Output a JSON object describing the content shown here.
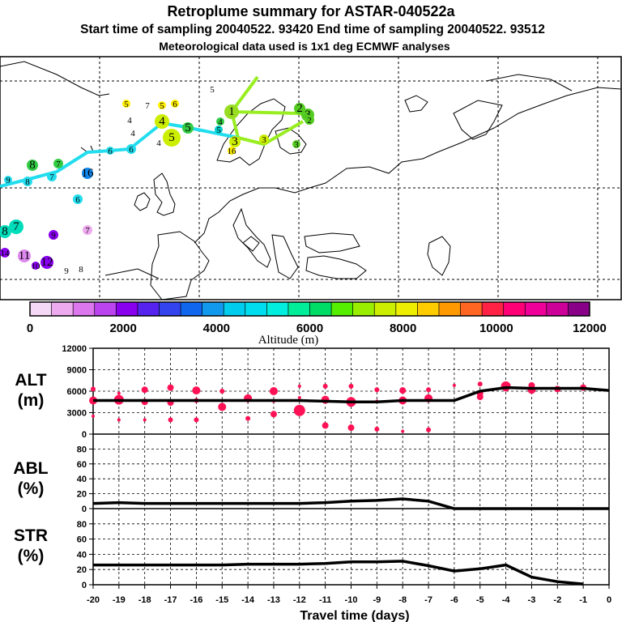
{
  "title": {
    "line1": "Retroplume summary for ASTAR-040522a",
    "line2": "Start time of sampling 20040522. 93420     End time of sampling 20040522. 93512",
    "line3": "Meteorological data used is 1x1 deg ECMWF analyses"
  },
  "colorbar": {
    "ticks": [
      "0",
      "2000",
      "4000",
      "6000",
      "8000",
      "10000",
      "12000"
    ],
    "label": "Altitude (m)",
    "colors": [
      "#f5d8f5",
      "#eeaaee",
      "#dd77ee",
      "#bb44ee",
      "#8800ee",
      "#5522ee",
      "#3344ee",
      "#1166ee",
      "#1199ee",
      "#00ccee",
      "#00ddee",
      "#00eedd",
      "#00ee99",
      "#00dd66",
      "#55ee00",
      "#99ee00",
      "#ccee00",
      "#eeee00",
      "#ffcc00",
      "#ff9900",
      "#ff6622",
      "#ff2244",
      "#ff0077",
      "#ee0099",
      "#cc0099",
      "#880088"
    ]
  },
  "map": {
    "trajectories": [
      {
        "name": "green-segment",
        "color": "#99ee22"
      },
      {
        "name": "cyan-segment",
        "color": "#22ddee"
      }
    ],
    "labels": [
      {
        "t": "1",
        "c": "#99dd22"
      },
      {
        "t": "2",
        "c": "#55cc22"
      },
      {
        "t": "3",
        "c": "#55cc22"
      },
      {
        "t": "2",
        "c": "#55cc22"
      },
      {
        "t": "3",
        "c": "#ccee00"
      },
      {
        "t": "3",
        "c": "#ccee00"
      },
      {
        "t": "3",
        "c": "#55cc22"
      },
      {
        "t": "4",
        "c": "#33cc44"
      },
      {
        "t": "5",
        "c": "#00cccc"
      },
      {
        "t": "4",
        "c": "#ccee00"
      },
      {
        "t": "5",
        "c": "#ccee00"
      },
      {
        "t": "4",
        "c": "#ccee00"
      },
      {
        "t": "5",
        "c": "#33cc44"
      },
      {
        "t": "4",
        "c": "#ffee00"
      },
      {
        "t": "5",
        "c": "#ffee00"
      },
      {
        "t": "4",
        "c": "#ffee00"
      },
      {
        "t": "7",
        "c": "#ffee00"
      },
      {
        "t": "5",
        "c": "#ffee00"
      },
      {
        "t": "6",
        "c": "#ffee00"
      },
      {
        "t": "5",
        "c": "#ffee00"
      },
      {
        "t": "16",
        "c": "#ffee00"
      },
      {
        "t": "6",
        "c": "#22ddee"
      },
      {
        "t": "6",
        "c": "#22ddee"
      },
      {
        "t": "16",
        "c": "#1188ee"
      },
      {
        "t": "8",
        "c": "#33cc44"
      },
      {
        "t": "7",
        "c": "#33cc44"
      },
      {
        "t": "8",
        "c": "#22ddee"
      },
      {
        "t": "7",
        "c": "#22ddee"
      },
      {
        "t": "9",
        "c": "#22ddee"
      },
      {
        "t": "6",
        "c": "#22ddee"
      },
      {
        "t": "8",
        "c": "#00ddbb"
      },
      {
        "t": "7",
        "c": "#00ddbb"
      },
      {
        "t": "7",
        "c": "#eeaaee"
      },
      {
        "t": "9",
        "c": "#8800ee"
      },
      {
        "t": "11",
        "c": "#dd88ee"
      },
      {
        "t": "12",
        "c": "#8800ee"
      },
      {
        "t": "10",
        "c": "#8800ee"
      },
      {
        "t": "14",
        "c": "#8800ee"
      },
      {
        "t": "9",
        "c": "#f5d8f5"
      },
      {
        "t": "8",
        "c": "#f5d8f5"
      }
    ]
  },
  "panels": {
    "alt": {
      "label_line1": "ALT",
      "label_line2": "(m)",
      "yticks": [
        "12000",
        "9000",
        "6000",
        "3000",
        "0"
      ]
    },
    "abl": {
      "label_line1": "ABL",
      "label_line2": "(%)",
      "yticks": [
        "80",
        "60",
        "40",
        "20",
        "0"
      ]
    },
    "str": {
      "label_line1": "STR",
      "label_line2": "(%)",
      "yticks": [
        "80",
        "60",
        "40",
        "20",
        "0"
      ]
    }
  },
  "xaxis": {
    "ticks": [
      "-20",
      "-19",
      "-18",
      "-17",
      "-16",
      "-15",
      "-14",
      "-13",
      "-12",
      "-11",
      "-10",
      "-9",
      "-8",
      "-7",
      "-6",
      "-5",
      "-4",
      "-3",
      "-2",
      "-1",
      "0"
    ],
    "label": "Travel time (days)"
  },
  "chart_data": [
    {
      "type": "line",
      "title": "ALT",
      "ylabel": "ALT (m)",
      "xlabel": "Travel time (days)",
      "xlim": [
        -20,
        0
      ],
      "ylim": [
        0,
        12000
      ],
      "grid": true,
      "x": [
        -20,
        -19,
        -18,
        -17,
        -16,
        -15,
        -14,
        -13,
        -12,
        -11,
        -10,
        -9,
        -8,
        -7,
        -6,
        -5,
        -4,
        -3,
        -2,
        -1,
        0
      ],
      "series": [
        {
          "name": "mean altitude",
          "values": [
            4700,
            4700,
            4700,
            4700,
            4700,
            4700,
            4700,
            4700,
            4700,
            4600,
            4500,
            4500,
            4700,
            4700,
            4700,
            6000,
            6500,
            6400,
            6400,
            6400,
            6100
          ]
        }
      ],
      "clusters": [
        {
          "day": -20,
          "alt": 6300,
          "size": 3
        },
        {
          "day": -20,
          "alt": 4700,
          "size": 5
        },
        {
          "day": -20,
          "alt": 2500,
          "size": 2
        },
        {
          "day": -19,
          "alt": 5700,
          "size": 2
        },
        {
          "day": -19,
          "alt": 4800,
          "size": 6
        },
        {
          "day": -19,
          "alt": 2000,
          "size": 2
        },
        {
          "day": -18,
          "alt": 6200,
          "size": 4
        },
        {
          "day": -18,
          "alt": 4500,
          "size": 4
        },
        {
          "day": -18,
          "alt": 2000,
          "size": 2
        },
        {
          "day": -17,
          "alt": 6500,
          "size": 4
        },
        {
          "day": -17,
          "alt": 4400,
          "size": 4
        },
        {
          "day": -17,
          "alt": 2000,
          "size": 3
        },
        {
          "day": -16,
          "alt": 6100,
          "size": 5
        },
        {
          "day": -16,
          "alt": 4700,
          "size": 3
        },
        {
          "day": -16,
          "alt": 2000,
          "size": 3
        },
        {
          "day": -15,
          "alt": 6000,
          "size": 3
        },
        {
          "day": -15,
          "alt": 3800,
          "size": 5
        },
        {
          "day": -14,
          "alt": 5000,
          "size": 5
        },
        {
          "day": -14,
          "alt": 2200,
          "size": 3
        },
        {
          "day": -13,
          "alt": 6000,
          "size": 5
        },
        {
          "day": -13,
          "alt": 4600,
          "size": 2
        },
        {
          "day": -13,
          "alt": 2800,
          "size": 4
        },
        {
          "day": -12,
          "alt": 6700,
          "size": 2
        },
        {
          "day": -12,
          "alt": 5100,
          "size": 2
        },
        {
          "day": -12,
          "alt": 3300,
          "size": 7
        },
        {
          "day": -11,
          "alt": 6700,
          "size": 3
        },
        {
          "day": -11,
          "alt": 4800,
          "size": 5
        },
        {
          "day": -11,
          "alt": 1200,
          "size": 4
        },
        {
          "day": -10,
          "alt": 6700,
          "size": 3
        },
        {
          "day": -10,
          "alt": 4500,
          "size": 6
        },
        {
          "day": -10,
          "alt": 900,
          "size": 4
        },
        {
          "day": -9,
          "alt": 6200,
          "size": 3
        },
        {
          "day": -9,
          "alt": 4600,
          "size": 2
        },
        {
          "day": -9,
          "alt": 700,
          "size": 3
        },
        {
          "day": -8,
          "alt": 6100,
          "size": 4
        },
        {
          "day": -8,
          "alt": 4700,
          "size": 5
        },
        {
          "day": -8,
          "alt": 400,
          "size": 2
        },
        {
          "day": -7,
          "alt": 6200,
          "size": 3
        },
        {
          "day": -7,
          "alt": 5000,
          "size": 5
        },
        {
          "day": -7,
          "alt": 600,
          "size": 3
        },
        {
          "day": -6,
          "alt": 6800,
          "size": 2
        },
        {
          "day": -5,
          "alt": 7000,
          "size": 3
        },
        {
          "day": -5,
          "alt": 5700,
          "size": 4
        },
        {
          "day": -5,
          "alt": 5200,
          "size": 4
        },
        {
          "day": -4,
          "alt": 6700,
          "size": 6
        },
        {
          "day": -4,
          "alt": 6400,
          "size": 4
        },
        {
          "day": -3,
          "alt": 6800,
          "size": 4
        },
        {
          "day": -3,
          "alt": 6200,
          "size": 5
        },
        {
          "day": -2,
          "alt": 6300,
          "size": 4
        },
        {
          "day": -1,
          "alt": 6500,
          "size": 4
        }
      ]
    },
    {
      "type": "line",
      "title": "ABL",
      "ylabel": "ABL (%)",
      "xlabel": "Travel time (days)",
      "xlim": [
        -20,
        0
      ],
      "ylim": [
        0,
        100
      ],
      "grid": true,
      "x": [
        -20,
        -19,
        -18,
        -17,
        -16,
        -15,
        -14,
        -13,
        -12,
        -11,
        -10,
        -9,
        -8,
        -7,
        -6,
        -5,
        -4,
        -3,
        -2,
        -1,
        0
      ],
      "series": [
        {
          "name": "ABL fraction",
          "values": [
            7,
            8,
            7,
            7,
            7,
            7,
            7,
            7,
            7,
            8,
            10,
            11,
            13,
            10,
            0,
            0,
            0,
            0,
            0,
            0,
            0
          ]
        }
      ]
    },
    {
      "type": "line",
      "title": "STR",
      "ylabel": "STR (%)",
      "xlabel": "Travel time (days)",
      "xlim": [
        -20,
        0
      ],
      "ylim": [
        0,
        100
      ],
      "grid": true,
      "x": [
        -20,
        -19,
        -18,
        -17,
        -16,
        -15,
        -14,
        -13,
        -12,
        -11,
        -10,
        -9,
        -8,
        -7,
        -6,
        -5,
        -4,
        -3,
        -2,
        -1
      ],
      "series": [
        {
          "name": "STR fraction",
          "values": [
            26,
            26,
            26,
            26,
            26,
            26,
            27,
            27,
            27,
            28,
            30,
            30,
            31,
            25,
            18,
            21,
            26,
            10,
            4,
            1
          ]
        }
      ]
    }
  ]
}
